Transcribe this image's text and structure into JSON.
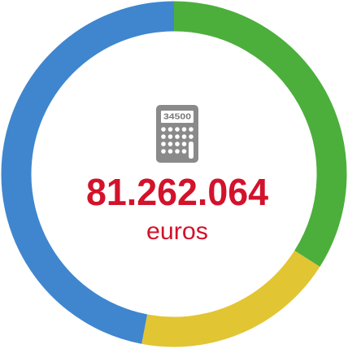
{
  "chart_data": {
    "type": "pie",
    "donut": true,
    "values": [
      34,
      19,
      47
    ],
    "colors": [
      "#4caf3c",
      "#e2c532",
      "#3f86cf"
    ],
    "center_value": "81.262.064",
    "center_unit": "euros",
    "icon_label": "34500"
  }
}
